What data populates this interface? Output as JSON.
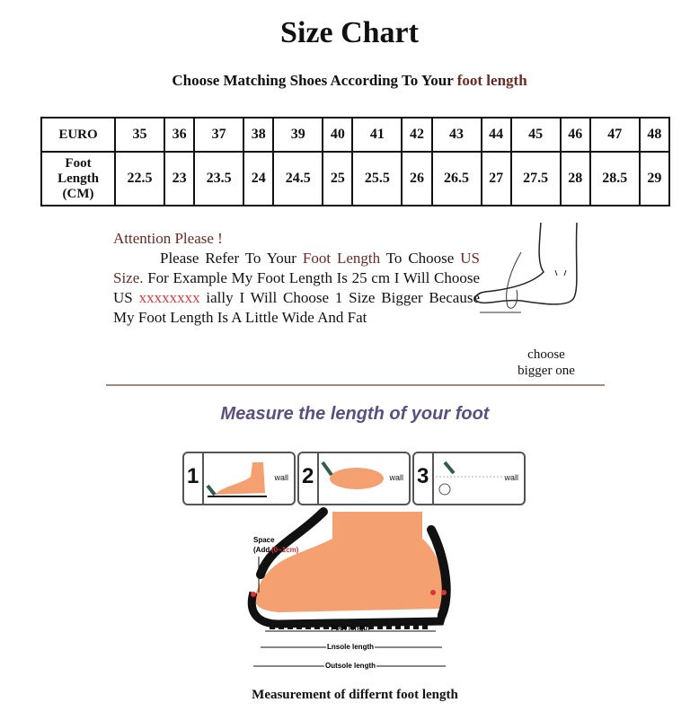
{
  "title": "Size Chart",
  "subtitle": {
    "text": "Choose Matching Shoes According To Your ",
    "highlight": "foot length"
  },
  "table": {
    "row1_header": "EURO",
    "row2_header": [
      "Foot",
      "Length",
      "(CM)"
    ],
    "euro": [
      "35",
      "36",
      "37",
      "38",
      "39",
      "40",
      "41",
      "42",
      "43",
      "44",
      "45",
      "46",
      "47",
      "48"
    ],
    "foot_length": [
      "22.5",
      "23",
      "23.5",
      "24",
      "24.5",
      "25",
      "25.5",
      "26",
      "26.5",
      "27",
      "27.5",
      "28",
      "28.5",
      "29"
    ]
  },
  "note": {
    "heading": "Attention Please !",
    "p1a": "Please Refer To Your ",
    "p1b": "Foot Length",
    "p1c": " To Choose ",
    "p1d": "US Size.",
    "p1e": " For Example My Foot Length Is 25 cm I Will Choose US ",
    "p1f": "xxxxxxxx",
    "p1g": " ially I Will Choose 1 Size Bigger Because My Foot Length Is A Little Wide And Fat"
  },
  "choose_label": [
    "choose",
    "bigger one"
  ],
  "measure_title": "Measure the length of your foot",
  "steps": [
    {
      "num": "1",
      "wall": "wall"
    },
    {
      "num": "2",
      "wall": "wall"
    },
    {
      "num": "3",
      "wall": "wall"
    }
  ],
  "diagram": {
    "space": "Space",
    "add": "(Add",
    "add_value": "(0~1cm)",
    "foot_length": "Foot length",
    "insole_length": "Lnsole length",
    "outsole_length": "Outsole length"
  },
  "caption": "Measurement of differnt foot length",
  "colors": {
    "highlight": "#6b2a22",
    "measure_title": "#5a4f7f",
    "foot": "#f4a070"
  }
}
